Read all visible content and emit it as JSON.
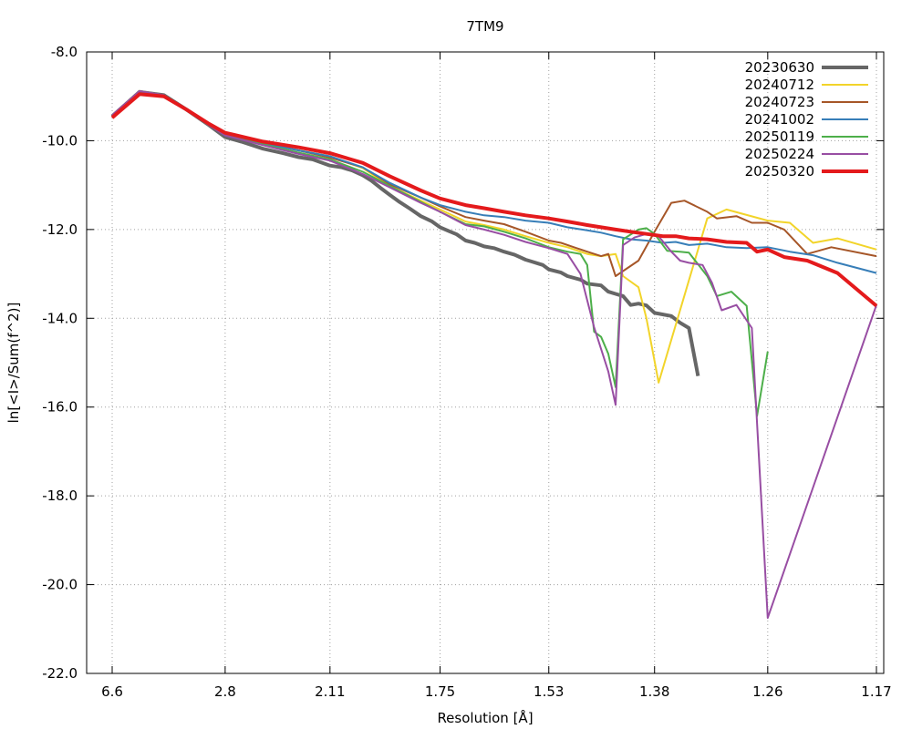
{
  "chart_data": {
    "type": "line",
    "title": "7TM9",
    "xlabel": "Resolution [Å]",
    "ylabel": "ln[<I>/Sum(f^2)]",
    "x_axis": {
      "scale": "inverse-square of resolution (1/d^2)",
      "range_ang": [
        6.6,
        1.17
      ],
      "ticks": [
        {
          "label": "6.6",
          "value": 6.6
        },
        {
          "label": "2.8",
          "value": 2.8
        },
        {
          "label": "2.11",
          "value": 2.11
        },
        {
          "label": "1.75",
          "value": 1.75
        },
        {
          "label": "1.53",
          "value": 1.53
        },
        {
          "label": "1.38",
          "value": 1.38
        },
        {
          "label": "1.26",
          "value": 1.26
        },
        {
          "label": "1.17",
          "value": 1.17
        }
      ]
    },
    "y_axis": {
      "range": [
        -22.0,
        -8.0
      ],
      "ticks": [
        {
          "label": "-8.0",
          "value": -8
        },
        {
          "label": "-10.0",
          "value": -10
        },
        {
          "label": "-12.0",
          "value": -12
        },
        {
          "label": "-14.0",
          "value": -14
        },
        {
          "label": "-16.0",
          "value": -16
        },
        {
          "label": "-18.0",
          "value": -18
        },
        {
          "label": "-20.0",
          "value": -20
        },
        {
          "label": "-22.0",
          "value": -22
        }
      ]
    },
    "grid": true,
    "legend_position": "top-right",
    "series": [
      {
        "name": "20230630",
        "color": "#666666",
        "width": 4,
        "points": [
          [
            6.6,
            -9.45
          ],
          [
            4.55,
            -8.9
          ],
          [
            3.76,
            -8.97
          ],
          [
            3.3,
            -9.3
          ],
          [
            2.98,
            -9.65
          ],
          [
            2.8,
            -9.92
          ],
          [
            2.65,
            -10.02
          ],
          [
            2.48,
            -10.18
          ],
          [
            2.35,
            -10.28
          ],
          [
            2.26,
            -10.37
          ],
          [
            2.19,
            -10.42
          ],
          [
            2.11,
            -10.56
          ],
          [
            2.06,
            -10.6
          ],
          [
            2.02,
            -10.67
          ],
          [
            1.98,
            -10.78
          ],
          [
            1.95,
            -10.9
          ],
          [
            1.92,
            -11.06
          ],
          [
            1.89,
            -11.22
          ],
          [
            1.86,
            -11.38
          ],
          [
            1.83,
            -11.53
          ],
          [
            1.8,
            -11.7
          ],
          [
            1.77,
            -11.82
          ],
          [
            1.75,
            -11.95
          ],
          [
            1.73,
            -12.03
          ],
          [
            1.71,
            -12.11
          ],
          [
            1.69,
            -12.25
          ],
          [
            1.67,
            -12.3
          ],
          [
            1.65,
            -12.38
          ],
          [
            1.63,
            -12.42
          ],
          [
            1.61,
            -12.5
          ],
          [
            1.59,
            -12.57
          ],
          [
            1.57,
            -12.68
          ],
          [
            1.56,
            -12.72
          ],
          [
            1.54,
            -12.8
          ],
          [
            1.53,
            -12.9
          ],
          [
            1.51,
            -12.97
          ],
          [
            1.5,
            -13.05
          ],
          [
            1.48,
            -13.13
          ],
          [
            1.47,
            -13.22
          ],
          [
            1.45,
            -13.26
          ],
          [
            1.44,
            -13.4
          ],
          [
            1.43,
            -13.45
          ],
          [
            1.42,
            -13.5
          ],
          [
            1.41,
            -13.7
          ],
          [
            1.4,
            -13.67
          ],
          [
            1.39,
            -13.71
          ],
          [
            1.38,
            -13.88
          ],
          [
            1.36,
            -13.95
          ],
          [
            1.35,
            -14.1
          ],
          [
            1.34,
            -14.22
          ],
          [
            1.33,
            -15.3
          ]
        ]
      },
      {
        "name": "20240712",
        "color": "#f2d42a",
        "width": 2,
        "points": [
          [
            6.6,
            -9.42
          ],
          [
            4.55,
            -8.88
          ],
          [
            3.76,
            -8.97
          ],
          [
            3.3,
            -9.3
          ],
          [
            2.98,
            -9.65
          ],
          [
            2.8,
            -9.85
          ],
          [
            2.48,
            -10.05
          ],
          [
            2.26,
            -10.22
          ],
          [
            2.11,
            -10.35
          ],
          [
            1.98,
            -10.62
          ],
          [
            1.89,
            -11.02
          ],
          [
            1.8,
            -11.35
          ],
          [
            1.75,
            -11.55
          ],
          [
            1.69,
            -11.82
          ],
          [
            1.65,
            -11.9
          ],
          [
            1.61,
            -12.0
          ],
          [
            1.57,
            -12.15
          ],
          [
            1.53,
            -12.3
          ],
          [
            1.5,
            -12.4
          ],
          [
            1.47,
            -12.55
          ],
          [
            1.45,
            -12.6
          ],
          [
            1.43,
            -12.55
          ],
          [
            1.42,
            -13.05
          ],
          [
            1.4,
            -13.3
          ],
          [
            1.39,
            -14.0
          ],
          [
            1.375,
            -15.45
          ],
          [
            1.32,
            -11.75
          ],
          [
            1.3,
            -11.55
          ],
          [
            1.26,
            -11.8
          ],
          [
            1.24,
            -11.85
          ],
          [
            1.22,
            -12.3
          ],
          [
            1.2,
            -12.2
          ],
          [
            1.17,
            -12.45
          ]
        ]
      },
      {
        "name": "20240723",
        "color": "#a65628",
        "width": 2,
        "points": [
          [
            6.6,
            -9.45
          ],
          [
            4.55,
            -8.9
          ],
          [
            3.76,
            -8.98
          ],
          [
            3.3,
            -9.3
          ],
          [
            2.98,
            -9.65
          ],
          [
            2.8,
            -9.86
          ],
          [
            2.48,
            -10.05
          ],
          [
            2.26,
            -10.22
          ],
          [
            2.11,
            -10.38
          ],
          [
            1.98,
            -10.6
          ],
          [
            1.89,
            -10.98
          ],
          [
            1.8,
            -11.28
          ],
          [
            1.75,
            -11.48
          ],
          [
            1.69,
            -11.72
          ],
          [
            1.65,
            -11.8
          ],
          [
            1.61,
            -11.88
          ],
          [
            1.57,
            -12.05
          ],
          [
            1.53,
            -12.25
          ],
          [
            1.51,
            -12.3
          ],
          [
            1.49,
            -12.4
          ],
          [
            1.47,
            -12.5
          ],
          [
            1.45,
            -12.6
          ],
          [
            1.44,
            -12.55
          ],
          [
            1.43,
            -13.05
          ],
          [
            1.4,
            -12.7
          ],
          [
            1.38,
            -12.05
          ],
          [
            1.36,
            -11.4
          ],
          [
            1.345,
            -11.35
          ],
          [
            1.32,
            -11.6
          ],
          [
            1.31,
            -11.75
          ],
          [
            1.29,
            -11.7
          ],
          [
            1.275,
            -11.85
          ],
          [
            1.26,
            -11.85
          ],
          [
            1.245,
            -12.0
          ],
          [
            1.225,
            -12.55
          ],
          [
            1.205,
            -12.4
          ],
          [
            1.17,
            -12.6
          ]
        ]
      },
      {
        "name": "20241002",
        "color": "#377eb8",
        "width": 2,
        "points": [
          [
            6.6,
            -9.45
          ],
          [
            4.55,
            -8.9
          ],
          [
            3.76,
            -8.97
          ],
          [
            3.3,
            -9.3
          ],
          [
            2.98,
            -9.65
          ],
          [
            2.8,
            -9.85
          ],
          [
            2.48,
            -10.05
          ],
          [
            2.26,
            -10.22
          ],
          [
            2.11,
            -10.35
          ],
          [
            1.98,
            -10.6
          ],
          [
            1.89,
            -10.95
          ],
          [
            1.8,
            -11.28
          ],
          [
            1.75,
            -11.45
          ],
          [
            1.69,
            -11.6
          ],
          [
            1.65,
            -11.68
          ],
          [
            1.61,
            -11.72
          ],
          [
            1.57,
            -11.8
          ],
          [
            1.53,
            -11.85
          ],
          [
            1.5,
            -11.95
          ],
          [
            1.47,
            -12.02
          ],
          [
            1.45,
            -12.07
          ],
          [
            1.43,
            -12.15
          ],
          [
            1.41,
            -12.22
          ],
          [
            1.39,
            -12.25
          ],
          [
            1.37,
            -12.3
          ],
          [
            1.355,
            -12.28
          ],
          [
            1.34,
            -12.35
          ],
          [
            1.32,
            -12.32
          ],
          [
            1.3,
            -12.4
          ],
          [
            1.28,
            -12.42
          ],
          [
            1.26,
            -12.4
          ],
          [
            1.24,
            -12.5
          ],
          [
            1.22,
            -12.58
          ],
          [
            1.2,
            -12.75
          ],
          [
            1.17,
            -12.98
          ]
        ]
      },
      {
        "name": "20250119",
        "color": "#4daf4a",
        "width": 2,
        "points": [
          [
            6.6,
            -9.42
          ],
          [
            4.55,
            -8.88
          ],
          [
            3.76,
            -8.97
          ],
          [
            3.3,
            -9.3
          ],
          [
            2.98,
            -9.65
          ],
          [
            2.8,
            -9.87
          ],
          [
            2.48,
            -10.08
          ],
          [
            2.26,
            -10.27
          ],
          [
            2.11,
            -10.42
          ],
          [
            1.98,
            -10.7
          ],
          [
            1.89,
            -11.02
          ],
          [
            1.8,
            -11.38
          ],
          [
            1.75,
            -11.6
          ],
          [
            1.69,
            -11.88
          ],
          [
            1.65,
            -11.93
          ],
          [
            1.61,
            -12.05
          ],
          [
            1.57,
            -12.2
          ],
          [
            1.53,
            -12.4
          ],
          [
            1.5,
            -12.5
          ],
          [
            1.48,
            -12.55
          ],
          [
            1.47,
            -12.8
          ],
          [
            1.46,
            -14.3
          ],
          [
            1.45,
            -14.42
          ],
          [
            1.44,
            -14.8
          ],
          [
            1.43,
            -15.55
          ],
          [
            1.42,
            -12.22
          ],
          [
            1.4,
            -12.0
          ],
          [
            1.39,
            -11.97
          ],
          [
            1.38,
            -12.1
          ],
          [
            1.365,
            -12.48
          ],
          [
            1.35,
            -12.5
          ],
          [
            1.34,
            -12.52
          ],
          [
            1.32,
            -13.05
          ],
          [
            1.31,
            -13.5
          ],
          [
            1.295,
            -13.4
          ],
          [
            1.28,
            -13.72
          ],
          [
            1.27,
            -16.2
          ],
          [
            1.26,
            -14.75
          ]
        ]
      },
      {
        "name": "20250224",
        "color": "#984ea3",
        "width": 2,
        "points": [
          [
            6.6,
            -9.42
          ],
          [
            4.55,
            -8.88
          ],
          [
            3.76,
            -8.97
          ],
          [
            3.3,
            -9.3
          ],
          [
            2.98,
            -9.65
          ],
          [
            2.8,
            -9.88
          ],
          [
            2.48,
            -10.1
          ],
          [
            2.26,
            -10.3
          ],
          [
            2.11,
            -10.45
          ],
          [
            1.98,
            -10.75
          ],
          [
            1.89,
            -11.05
          ],
          [
            1.8,
            -11.4
          ],
          [
            1.75,
            -11.6
          ],
          [
            1.69,
            -11.9
          ],
          [
            1.65,
            -12.0
          ],
          [
            1.61,
            -12.12
          ],
          [
            1.57,
            -12.28
          ],
          [
            1.53,
            -12.42
          ],
          [
            1.5,
            -12.55
          ],
          [
            1.48,
            -13.0
          ],
          [
            1.46,
            -14.2
          ],
          [
            1.44,
            -15.2
          ],
          [
            1.43,
            -15.95
          ],
          [
            1.42,
            -12.35
          ],
          [
            1.405,
            -12.18
          ],
          [
            1.39,
            -12.1
          ],
          [
            1.375,
            -12.15
          ],
          [
            1.36,
            -12.5
          ],
          [
            1.35,
            -12.7
          ],
          [
            1.34,
            -12.75
          ],
          [
            1.325,
            -12.8
          ],
          [
            1.315,
            -13.2
          ],
          [
            1.305,
            -13.82
          ],
          [
            1.29,
            -13.7
          ],
          [
            1.275,
            -14.22
          ],
          [
            1.26,
            -20.75
          ],
          [
            1.17,
            -13.7
          ]
        ]
      },
      {
        "name": "20250320",
        "color": "#e41a1c",
        "width": 4,
        "points": [
          [
            6.6,
            -9.48
          ],
          [
            4.55,
            -8.95
          ],
          [
            3.76,
            -9.0
          ],
          [
            3.3,
            -9.3
          ],
          [
            2.98,
            -9.62
          ],
          [
            2.8,
            -9.82
          ],
          [
            2.48,
            -10.02
          ],
          [
            2.26,
            -10.15
          ],
          [
            2.11,
            -10.28
          ],
          [
            1.98,
            -10.5
          ],
          [
            1.89,
            -10.8
          ],
          [
            1.8,
            -11.12
          ],
          [
            1.75,
            -11.3
          ],
          [
            1.69,
            -11.45
          ],
          [
            1.65,
            -11.52
          ],
          [
            1.61,
            -11.6
          ],
          [
            1.57,
            -11.68
          ],
          [
            1.53,
            -11.75
          ],
          [
            1.5,
            -11.82
          ],
          [
            1.47,
            -11.9
          ],
          [
            1.45,
            -11.95
          ],
          [
            1.43,
            -12.0
          ],
          [
            1.41,
            -12.05
          ],
          [
            1.39,
            -12.1
          ],
          [
            1.37,
            -12.15
          ],
          [
            1.355,
            -12.15
          ],
          [
            1.34,
            -12.2
          ],
          [
            1.32,
            -12.22
          ],
          [
            1.3,
            -12.28
          ],
          [
            1.28,
            -12.3
          ],
          [
            1.27,
            -12.5
          ],
          [
            1.26,
            -12.45
          ],
          [
            1.245,
            -12.62
          ],
          [
            1.225,
            -12.7
          ],
          [
            1.2,
            -12.98
          ],
          [
            1.17,
            -13.72
          ]
        ]
      }
    ]
  }
}
